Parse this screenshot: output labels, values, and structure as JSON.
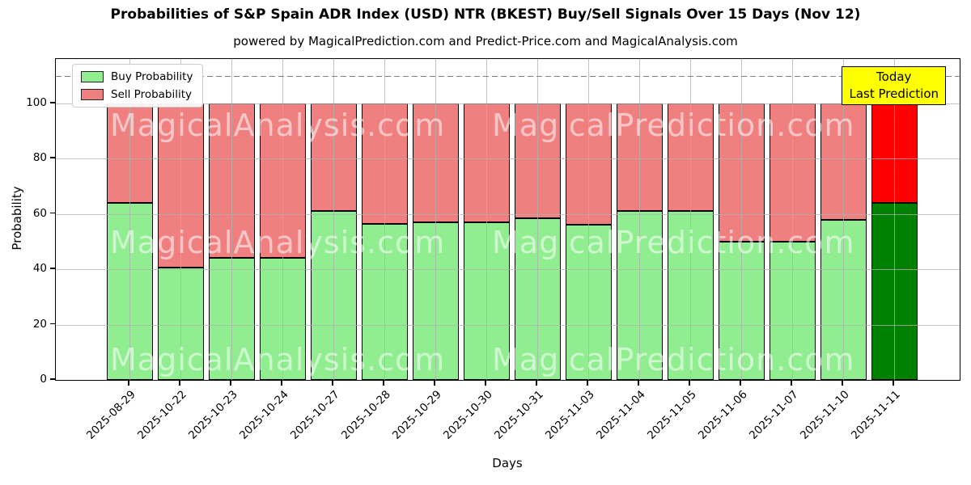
{
  "title": "Probabilities of S&P Spain ADR Index (USD) NTR (BKEST) Buy/Sell Signals Over 15 Days (Nov 12)",
  "subtitle": "powered by MagicalPrediction.com and Predict-Price.com and MagicalAnalysis.com",
  "watermarks": {
    "left": "MagicalAnalysis.com",
    "right": "MagicalPrediction.com"
  },
  "annotation": {
    "line1": "Today",
    "line2": "Last Prediction",
    "bg_color": "#ffff00"
  },
  "legend": [
    {
      "label": "Buy Probability",
      "color": "#90ee90"
    },
    {
      "label": "Sell Probability",
      "color": "#f08080"
    }
  ],
  "axes": {
    "ylabel": "Probability",
    "xlabel": "Days",
    "yticks": [
      0,
      20,
      40,
      60,
      80,
      100
    ],
    "ylim": [
      0,
      116
    ],
    "dashed_line_y": 110,
    "grid": true,
    "grid_color": "#b0b0b0",
    "dash_color": "#7f7f7f"
  },
  "chart_data": {
    "type": "bar",
    "stacked": true,
    "title": "Probabilities of S&P Spain ADR Index (USD) NTR (BKEST) Buy/Sell Signals Over 15 Days (Nov 12)",
    "xlabel": "Days",
    "ylabel": "Probability",
    "ylim": [
      0,
      116
    ],
    "legend_position": "upper left",
    "categories": [
      "2025-08-29",
      "2025-10-22",
      "2025-10-23",
      "2025-10-24",
      "2025-10-27",
      "2025-10-28",
      "2025-10-29",
      "2025-10-30",
      "2025-10-31",
      "2025-11-03",
      "2025-11-04",
      "2025-11-05",
      "2025-11-06",
      "2025-11-07",
      "2025-11-10",
      "2025-11-11"
    ],
    "series": [
      {
        "name": "Buy Probability",
        "values": [
          64,
          40.5,
          44,
          44,
          61,
          56.5,
          57,
          57,
          58.5,
          56,
          61,
          61,
          50,
          50,
          58,
          64
        ]
      },
      {
        "name": "Sell Probability",
        "values": [
          36,
          59.5,
          56,
          56,
          39,
          43.5,
          43,
          43,
          41.5,
          44,
          39,
          39,
          50,
          50,
          42,
          36
        ]
      }
    ],
    "bar_colors": {
      "buy": "#90ee90",
      "sell": "#f08080",
      "last_buy": "#008000",
      "last_sell": "#ff0000"
    },
    "highlight_last": true
  }
}
